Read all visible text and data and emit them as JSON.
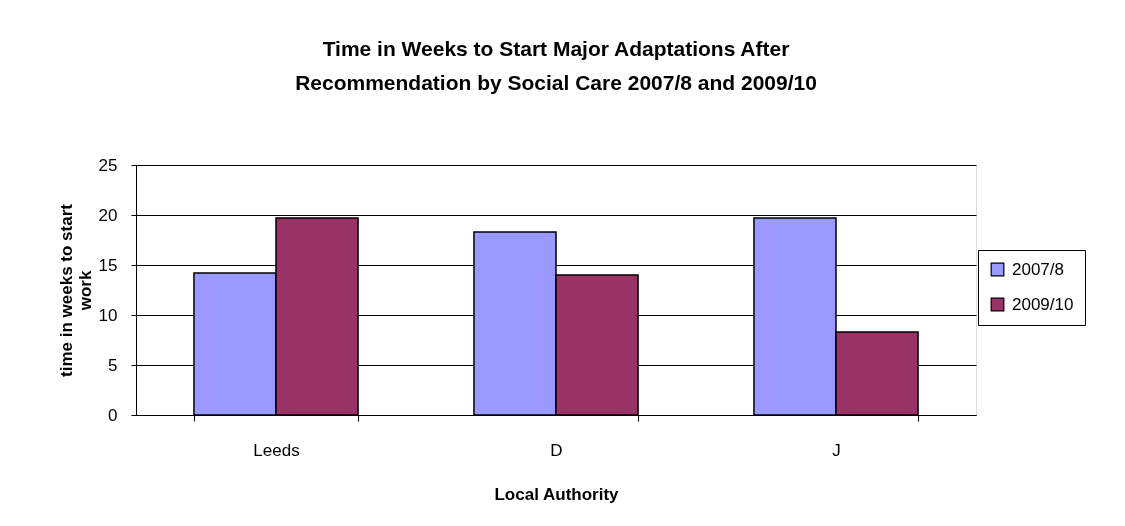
{
  "chart_data": {
    "type": "bar",
    "title": "Time in Weeks to Start Major Adaptations After Recommendation by Social Care 2007/8 and 2009/10",
    "xlabel": "Local Authority",
    "ylabel": "time in weeks to start work",
    "categories": [
      "Leeds",
      "D",
      "J"
    ],
    "series": [
      {
        "name": "2007/8",
        "color": "#9999ff",
        "values": [
          14.2,
          18.3,
          19.7
        ]
      },
      {
        "name": "2009/10",
        "color": "#993366",
        "values": [
          19.7,
          14.0,
          8.3
        ]
      }
    ],
    "ylim": [
      0,
      25
    ],
    "yticks": [
      0,
      5,
      10,
      15,
      20,
      25
    ],
    "grid": "y",
    "legend": "right"
  }
}
